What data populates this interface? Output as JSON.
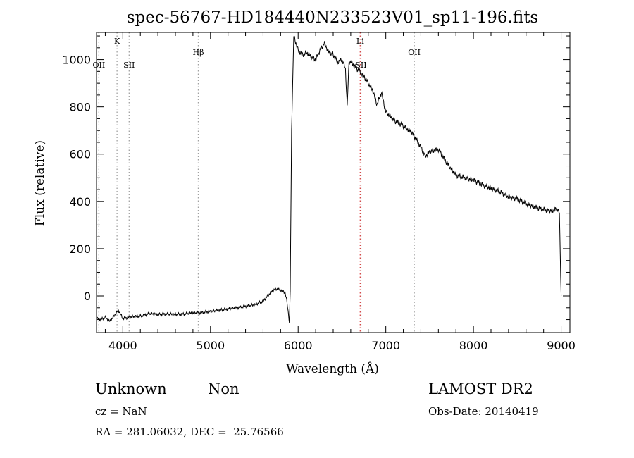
{
  "chart_data": {
    "type": "line",
    "title": "spec-56767-HD184440N233523V01_sp11-196.fits",
    "xlabel": "Wavelength (Å)",
    "ylabel": "Flux (relative)",
    "xlim": [
      3700,
      9100
    ],
    "ylim": [
      -155,
      1115
    ],
    "x_ticks": [
      4000,
      5000,
      6000,
      7000,
      8000,
      9000
    ],
    "y_ticks": [
      0,
      200,
      400,
      600,
      800,
      1000
    ],
    "grid": false,
    "series": [
      {
        "points": [
          [
            3700,
            -95
          ],
          [
            3750,
            -100
          ],
          [
            3800,
            -90
          ],
          [
            3850,
            -108
          ],
          [
            3900,
            -85
          ],
          [
            3950,
            -60
          ],
          [
            4000,
            -95
          ],
          [
            4050,
            -92
          ],
          [
            4100,
            -88
          ],
          [
            4200,
            -85
          ],
          [
            4300,
            -75
          ],
          [
            4400,
            -78
          ],
          [
            4500,
            -76
          ],
          [
            4600,
            -78
          ],
          [
            4700,
            -76
          ],
          [
            4800,
            -72
          ],
          [
            4900,
            -70
          ],
          [
            5000,
            -65
          ],
          [
            5100,
            -60
          ],
          [
            5200,
            -55
          ],
          [
            5300,
            -50
          ],
          [
            5400,
            -43
          ],
          [
            5500,
            -38
          ],
          [
            5600,
            -22
          ],
          [
            5700,
            20
          ],
          [
            5750,
            30
          ],
          [
            5800,
            25
          ],
          [
            5850,
            15
          ],
          [
            5870,
            -20
          ],
          [
            5890,
            -75
          ],
          [
            5900,
            -115
          ],
          [
            5910,
            20
          ],
          [
            5925,
            700
          ],
          [
            5950,
            1100
          ],
          [
            6000,
            1040
          ],
          [
            6050,
            1020
          ],
          [
            6100,
            1030
          ],
          [
            6150,
            1010
          ],
          [
            6200,
            1000
          ],
          [
            6250,
            1040
          ],
          [
            6300,
            1070
          ],
          [
            6350,
            1030
          ],
          [
            6400,
            1020
          ],
          [
            6450,
            990
          ],
          [
            6500,
            1000
          ],
          [
            6540,
            960
          ],
          [
            6560,
            800
          ],
          [
            6580,
            990
          ],
          [
            6600,
            990
          ],
          [
            6650,
            970
          ],
          [
            6700,
            950
          ],
          [
            6750,
            930
          ],
          [
            6800,
            900
          ],
          [
            6850,
            870
          ],
          [
            6900,
            810
          ],
          [
            6950,
            860
          ],
          [
            7000,
            780
          ],
          [
            7100,
            740
          ],
          [
            7200,
            720
          ],
          [
            7300,
            690
          ],
          [
            7400,
            630
          ],
          [
            7450,
            590
          ],
          [
            7500,
            610
          ],
          [
            7600,
            620
          ],
          [
            7700,
            560
          ],
          [
            7800,
            510
          ],
          [
            7900,
            500
          ],
          [
            8000,
            490
          ],
          [
            8100,
            470
          ],
          [
            8200,
            455
          ],
          [
            8300,
            440
          ],
          [
            8400,
            420
          ],
          [
            8500,
            410
          ],
          [
            8600,
            390
          ],
          [
            8700,
            375
          ],
          [
            8800,
            365
          ],
          [
            8900,
            360
          ],
          [
            8960,
            370
          ],
          [
            8980,
            350
          ],
          [
            9000,
            0
          ]
        ]
      }
    ],
    "spectral_lines": [
      {
        "label": "OII",
        "wavelength": 3727,
        "level": "low",
        "color": "#a0a0a0"
      },
      {
        "label": "K",
        "wavelength": 3934,
        "level": "high",
        "color": "#a0a0a0"
      },
      {
        "label": "SII",
        "wavelength": 4072,
        "level": "low",
        "color": "#a0a0a0"
      },
      {
        "label": "Hβ",
        "wavelength": 4861,
        "level": "mid",
        "color": "#a0a0a0"
      },
      {
        "label": "Li",
        "wavelength": 6708,
        "level": "high",
        "color": "#e03030"
      },
      {
        "label": "SII",
        "wavelength": 6717,
        "level": "low",
        "color": "#a0a0a0"
      },
      {
        "label": "OII",
        "wavelength": 7325,
        "level": "mid",
        "color": "#a0a0a0"
      }
    ]
  },
  "footer": {
    "class_label": "Unknown",
    "subclass_label": "Non",
    "survey_label": "LAMOST DR2",
    "cz_text": "cz = NaN",
    "obs_date_text": "Obs-Date: 20140419",
    "coords_text": "RA = 281.06032, DEC =  25.76566"
  }
}
